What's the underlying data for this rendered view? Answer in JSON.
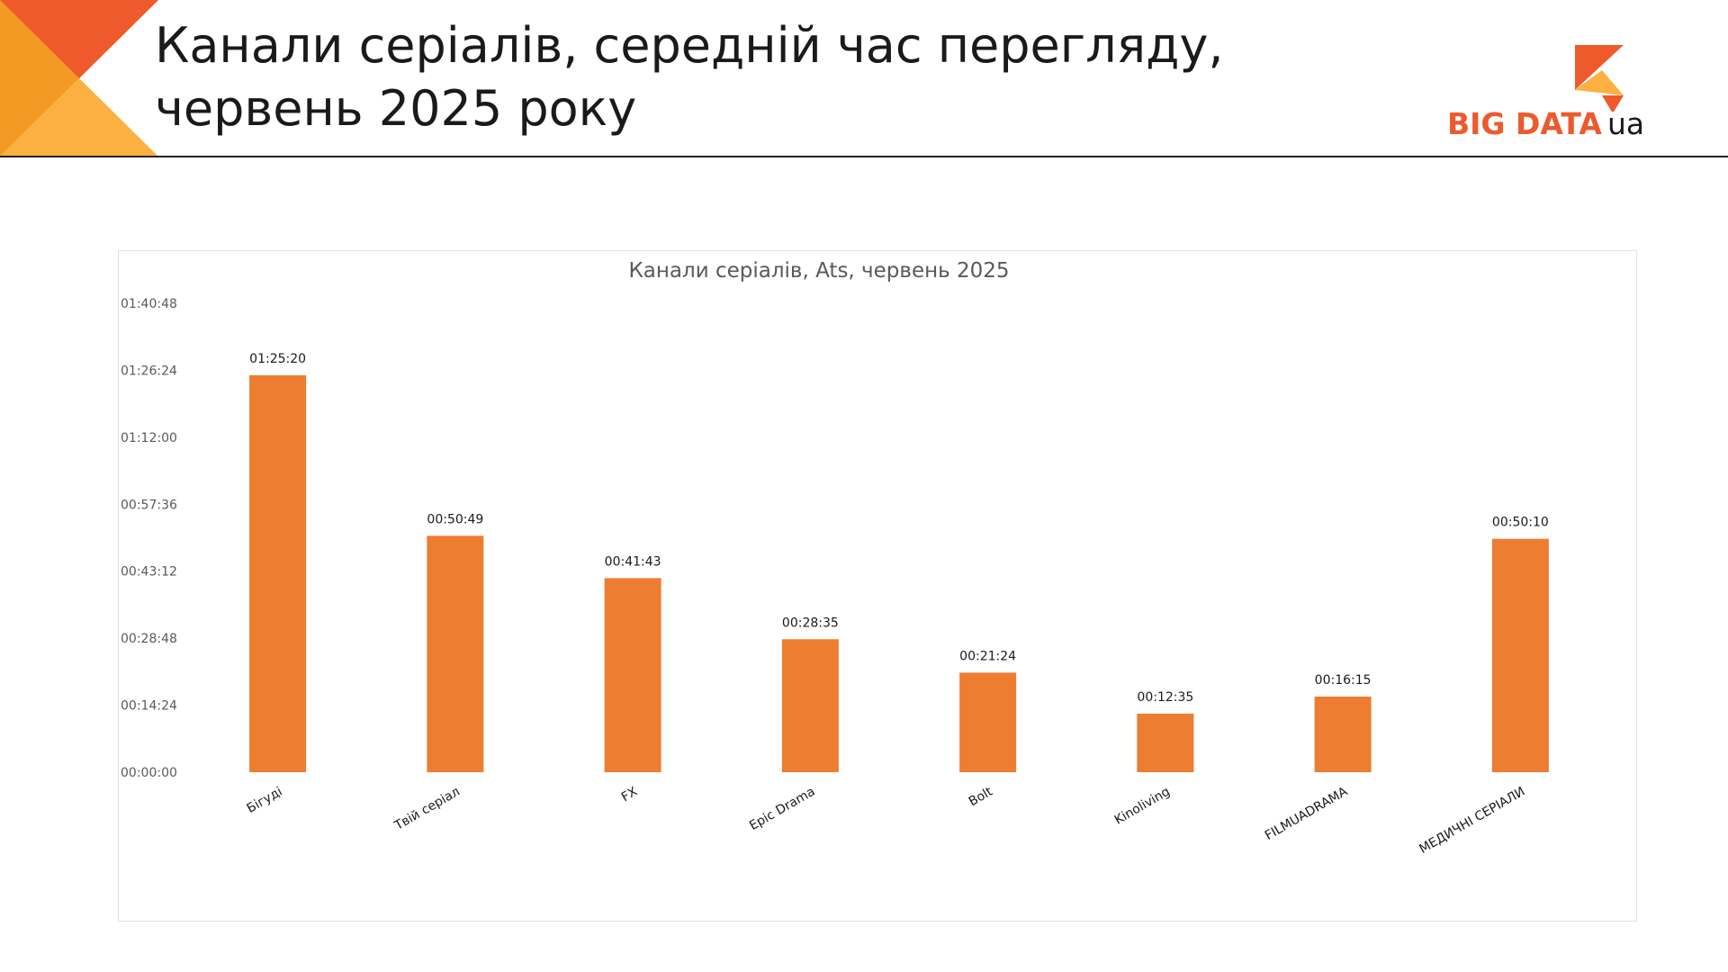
{
  "header": {
    "title_line1": "Канали серіалів, середній час перегляду,",
    "title_line2": "червень 2025 року"
  },
  "logo": {
    "text": "BIG DATA",
    "suffix": "ua"
  },
  "colors": {
    "accent": "#ED7D31",
    "logo_orange": "#EC5A2D",
    "corner_orange": "#F39A25",
    "corner_light": "#FBB040",
    "corner_red": "#EE5A2B"
  },
  "chart_data": {
    "type": "bar",
    "title": "Канали серіалів, Ats, червень 2025",
    "xlabel": "",
    "ylabel": "",
    "categories": [
      "Бігуді",
      "Твій серіал",
      "FX",
      "Epic Drama",
      "Bolt",
      "Kinoliving",
      "FILMUADRAMA",
      "МЕДИЧНІ СЕРІАЛИ"
    ],
    "values_seconds": [
      5120,
      3049,
      2503,
      1715,
      1284,
      755,
      975,
      3010
    ],
    "value_labels": [
      "01:25:20",
      "00:50:49",
      "00:41:43",
      "00:28:35",
      "00:21:24",
      "00:12:35",
      "00:16:15",
      "00:50:10"
    ],
    "y_ticks_seconds": [
      0,
      864,
      1728,
      2592,
      3456,
      4320,
      5184,
      6048
    ],
    "y_tick_labels": [
      "00:00:00",
      "00:14:24",
      "00:28:48",
      "00:43:12",
      "00:57:36",
      "01:12:00",
      "01:26:24",
      "01:40:48"
    ],
    "ylim_seconds": [
      0,
      6048
    ],
    "grid": false,
    "legend": "none"
  }
}
